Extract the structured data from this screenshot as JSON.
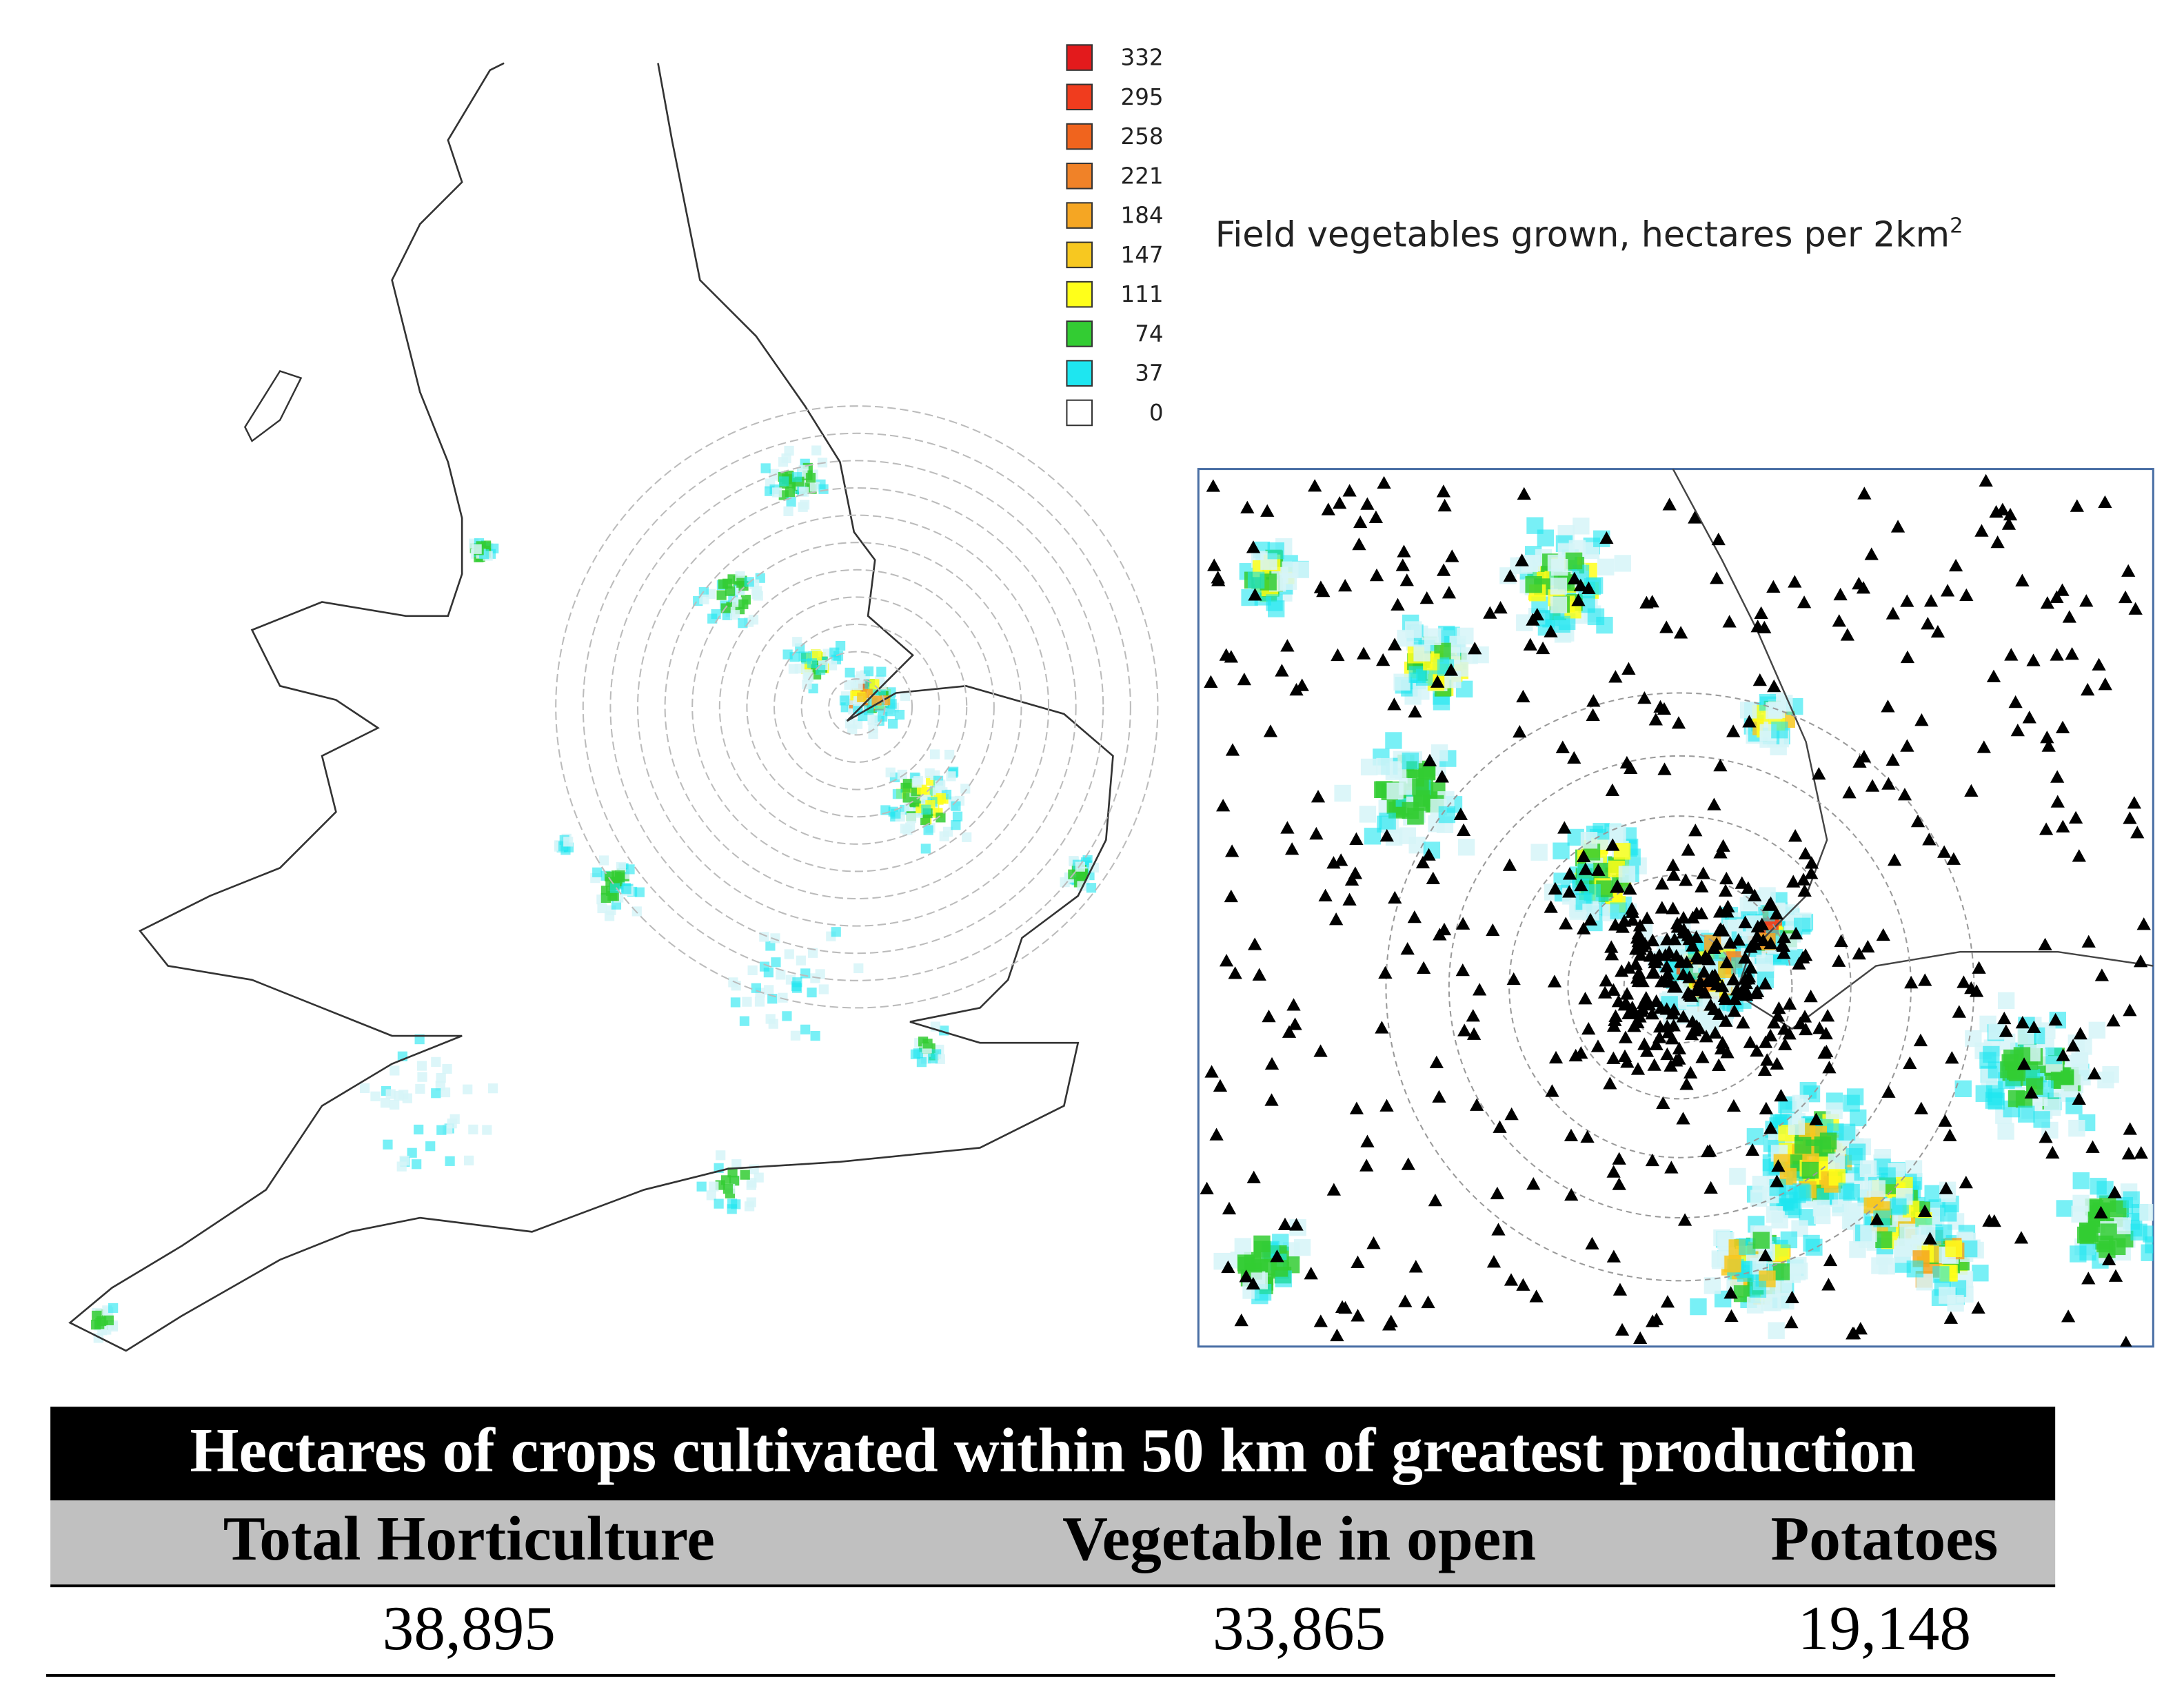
{
  "legend": {
    "items": [
      {
        "label": "332",
        "color": "#e31a1c"
      },
      {
        "label": "295",
        "color": "#f03c1e"
      },
      {
        "label": "258",
        "color": "#f0641e"
      },
      {
        "label": "221",
        "color": "#f08228"
      },
      {
        "label": "184",
        "color": "#f5a623"
      },
      {
        "label": "147",
        "color": "#f7c820"
      },
      {
        "label": "111",
        "color": "#ffff1a"
      },
      {
        "label": "74",
        "color": "#33cc33"
      },
      {
        "label": "37",
        "color": "#1ee6f0"
      },
      {
        "label": "0",
        "color": "#ffffff"
      }
    ],
    "caption": "Field vegetables grown, hectares per 2km",
    "caption_superscript": "2"
  },
  "table": {
    "title": "Hectares of crops cultivated within 50 km of greatest production",
    "headers": [
      "Total Horticulture",
      "Vegetable in open",
      "Potatoes"
    ],
    "rows": [
      [
        "38,895",
        "33,865",
        "19,148"
      ]
    ]
  }
}
